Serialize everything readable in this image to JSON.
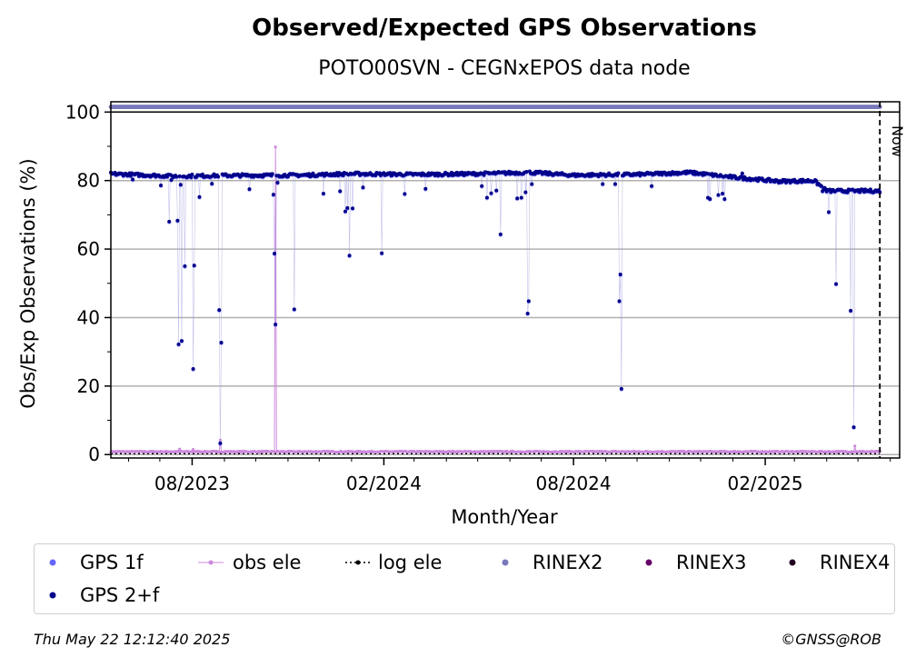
{
  "chart_data": {
    "type": "scatter",
    "title": "Observed/Expected GPS Observations",
    "subtitle": "POTO00SVN - CEGNxEPOS data node",
    "xlabel": "Month/Year",
    "ylabel": "Obs/Exp Observations (%)",
    "xlim": [
      "2023-05-15",
      "2025-06-10"
    ],
    "ylim": [
      -1,
      103
    ],
    "grid": "y",
    "x_tick_labels": [
      {
        "date": "2023-08-01",
        "label": "08/2023"
      },
      {
        "date": "2024-02-01",
        "label": "02/2024"
      },
      {
        "date": "2024-08-01",
        "label": "08/2024"
      },
      {
        "date": "2025-02-01",
        "label": "02/2025"
      }
    ],
    "y_ticks": [
      0,
      20,
      40,
      60,
      80,
      100
    ],
    "now_marker": {
      "date": "2025-05-22",
      "label": "Now"
    },
    "series": [
      {
        "name": "GPS 2+f",
        "color": "#00008b",
        "baseline": [
          [
            "2023-05-15",
            82.0
          ],
          [
            "2023-07-15",
            81.3
          ],
          [
            "2023-09-01",
            81.5
          ],
          [
            "2023-11-15",
            81.6
          ],
          [
            "2024-01-01",
            82.0
          ],
          [
            "2024-03-01",
            81.8
          ],
          [
            "2024-05-01",
            82.0
          ],
          [
            "2024-06-20",
            82.4
          ],
          [
            "2024-08-01",
            81.6
          ],
          [
            "2024-10-01",
            81.8
          ],
          [
            "2024-11-20",
            82.4
          ],
          [
            "2025-01-01",
            81.0
          ],
          [
            "2025-02-15",
            79.8
          ],
          [
            "2025-03-20",
            80.0
          ],
          [
            "2025-04-01",
            77.0
          ],
          [
            "2025-05-22",
            77.0
          ]
        ],
        "outliers": [
          [
            "2023-06-05",
            80.3
          ],
          [
            "2023-07-02",
            78.6
          ],
          [
            "2023-07-10",
            68.0
          ],
          [
            "2023-07-12",
            80.2
          ],
          [
            "2023-07-18",
            68.3
          ],
          [
            "2023-07-19",
            32.2
          ],
          [
            "2023-07-21",
            78.8
          ],
          [
            "2023-07-22",
            33.2
          ],
          [
            "2023-07-25",
            55.0
          ],
          [
            "2023-08-02",
            25.0
          ],
          [
            "2023-08-03",
            55.2
          ],
          [
            "2023-08-08",
            75.2
          ],
          [
            "2023-08-20",
            79.1
          ],
          [
            "2023-08-27",
            42.2
          ],
          [
            "2023-08-28",
            3.3
          ],
          [
            "2023-08-29",
            32.7
          ],
          [
            "2023-09-25",
            77.5
          ],
          [
            "2023-10-18",
            75.9
          ],
          [
            "2023-10-19",
            58.7
          ],
          [
            "2023-10-20",
            38.0
          ],
          [
            "2023-10-22",
            79.4
          ],
          [
            "2023-11-07",
            42.4
          ],
          [
            "2023-12-05",
            76.2
          ],
          [
            "2023-12-21",
            76.9
          ],
          [
            "2023-12-26",
            71.0
          ],
          [
            "2023-12-28",
            72.0
          ],
          [
            "2023-12-30",
            58.1
          ],
          [
            "2024-01-02",
            71.9
          ],
          [
            "2024-01-12",
            78.0
          ],
          [
            "2024-01-30",
            58.8
          ],
          [
            "2024-02-21",
            76.1
          ],
          [
            "2024-03-12",
            77.6
          ],
          [
            "2024-05-05",
            78.4
          ],
          [
            "2024-05-10",
            75.0
          ],
          [
            "2024-05-14",
            76.3
          ],
          [
            "2024-05-19",
            77.1
          ],
          [
            "2024-05-23",
            64.3
          ],
          [
            "2024-06-08",
            74.8
          ],
          [
            "2024-06-12",
            75.0
          ],
          [
            "2024-06-16",
            76.6
          ],
          [
            "2024-06-18",
            41.2
          ],
          [
            "2024-06-19",
            44.8
          ],
          [
            "2024-06-22",
            79.0
          ],
          [
            "2024-08-29",
            79.0
          ],
          [
            "2024-09-10",
            79.0
          ],
          [
            "2024-09-14",
            44.8
          ],
          [
            "2024-09-15",
            52.6
          ],
          [
            "2024-09-16",
            19.2
          ],
          [
            "2024-10-15",
            78.4
          ],
          [
            "2024-12-08",
            75.0
          ],
          [
            "2024-12-10",
            74.6
          ],
          [
            "2024-12-18",
            75.8
          ],
          [
            "2024-12-22",
            76.2
          ],
          [
            "2024-12-24",
            74.6
          ],
          [
            "2025-01-10",
            82.1
          ],
          [
            "2025-03-28",
            76.9
          ],
          [
            "2025-04-03",
            70.8
          ],
          [
            "2025-04-10",
            49.8
          ],
          [
            "2025-04-24",
            42.0
          ],
          [
            "2025-04-27",
            8.0
          ]
        ]
      },
      {
        "name": "GPS 1f",
        "color": "#6666ff",
        "baseline": [
          [
            "2023-05-15",
            81.6
          ],
          [
            "2025-05-22",
            81.0
          ]
        ]
      },
      {
        "name": "obs ele",
        "color": "#cc88dd",
        "baseline": [
          [
            "2023-05-15",
            0.8
          ],
          [
            "2025-05-22",
            0.8
          ]
        ],
        "outliers": [
          [
            "2023-07-20",
            1.6
          ],
          [
            "2023-08-02",
            1.5
          ],
          [
            "2023-08-28",
            4.2
          ],
          [
            "2023-10-20",
            89.8
          ],
          [
            "2025-04-28",
            2.5
          ]
        ]
      },
      {
        "name": "log ele",
        "color": "#000000",
        "baseline": [
          [
            "2023-05-15",
            0.0
          ],
          [
            "2025-05-22",
            0.0
          ]
        ]
      },
      {
        "name": "RINEX2",
        "color": "#7777bb",
        "baseline": [
          [
            "2023-05-15",
            101.5
          ],
          [
            "2025-05-22",
            101.5
          ]
        ]
      },
      {
        "name": "RINEX3",
        "color": "#660066",
        "baseline": []
      },
      {
        "name": "RINEX4",
        "color": "#220022",
        "baseline": []
      }
    ]
  },
  "legend": {
    "items": [
      {
        "label": "GPS 1f",
        "color": "#6666ff",
        "marker": "dot"
      },
      {
        "label": "obs ele",
        "color": "#cc88dd",
        "marker": "line-dot"
      },
      {
        "label": "log ele",
        "color": "#000000",
        "marker": "dotted-dot"
      },
      {
        "label": "RINEX2",
        "color": "#7777bb",
        "marker": "dot"
      },
      {
        "label": "RINEX3",
        "color": "#660066",
        "marker": "dot"
      },
      {
        "label": "RINEX4",
        "color": "#220022",
        "marker": "dot"
      },
      {
        "label": "GPS 2+f",
        "color": "#00008b",
        "marker": "dot"
      }
    ]
  },
  "footer": {
    "timestamp": "Thu May 22 12:12:40 2025",
    "copyright": "©GNSS@ROB"
  }
}
